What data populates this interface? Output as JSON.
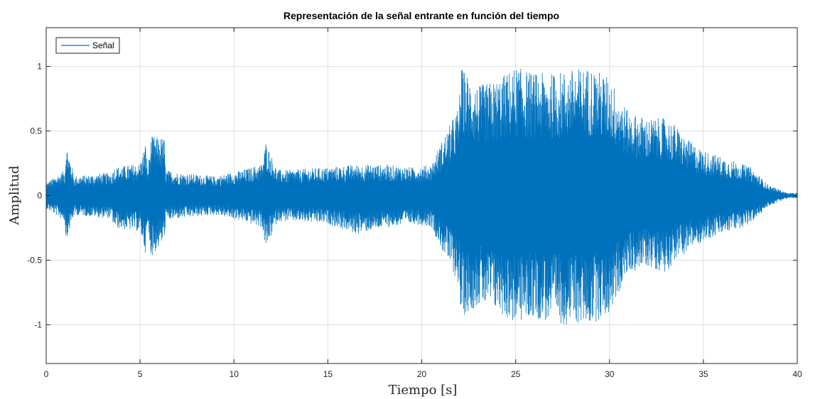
{
  "chart_data": {
    "type": "line",
    "title": "Representación de la señal entrante en función del tiempo",
    "xlabel": "Tiempo [s]",
    "ylabel": "Amplitud",
    "xlim": [
      0,
      40
    ],
    "ylim": [
      -1.3,
      1.3
    ],
    "xticks": [
      0,
      5,
      10,
      15,
      20,
      25,
      30,
      35,
      40
    ],
    "xtick_labels": [
      "0",
      "5",
      "10",
      "15",
      "20",
      "25",
      "30",
      "35",
      "40"
    ],
    "yticks": [
      -1,
      -0.5,
      0,
      0.5,
      1
    ],
    "ytick_labels": [
      "-1",
      "-0.5",
      "0",
      "0.5",
      "1"
    ],
    "grid": true,
    "legend_position": "top-left",
    "series": [
      {
        "name": "Señal",
        "color": "#0072BD",
        "envelope_t": [
          0,
          1,
          1.05,
          1.5,
          3.5,
          3.6,
          5.0,
          5.3,
          5.4,
          5.6,
          6.3,
          6.35,
          7.0,
          9.0,
          10.5,
          11.5,
          11.7,
          12.3,
          13.0,
          15.0,
          16.5,
          18.0,
          19.5,
          20.5,
          21.0,
          21.5,
          22.0,
          22.05,
          23.0,
          24.0,
          25.0,
          26.0,
          27.0,
          28.0,
          29.0,
          30.0,
          31.0,
          32.0,
          33.0,
          33.5,
          34.0,
          35.0,
          36.0,
          37.0,
          37.5,
          38.0,
          38.5,
          39.0,
          39.5,
          40.0
        ],
        "envelope_pos": [
          0.1,
          0.2,
          0.42,
          0.15,
          0.18,
          0.22,
          0.25,
          0.42,
          0.2,
          0.46,
          0.45,
          0.2,
          0.18,
          0.15,
          0.2,
          0.25,
          0.42,
          0.2,
          0.2,
          0.22,
          0.24,
          0.24,
          0.22,
          0.24,
          0.4,
          0.55,
          0.7,
          1.0,
          0.85,
          0.9,
          1.0,
          0.95,
          0.95,
          0.98,
          1.0,
          0.92,
          0.65,
          0.6,
          0.6,
          0.55,
          0.45,
          0.35,
          0.3,
          0.25,
          0.22,
          0.15,
          0.08,
          0.05,
          0.02,
          0.02
        ],
        "envelope_neg": [
          -0.1,
          -0.2,
          -0.35,
          -0.15,
          -0.18,
          -0.25,
          -0.28,
          -0.45,
          -0.25,
          -0.48,
          -0.35,
          -0.2,
          -0.18,
          -0.15,
          -0.2,
          -0.25,
          -0.42,
          -0.2,
          -0.2,
          -0.22,
          -0.3,
          -0.25,
          -0.22,
          -0.24,
          -0.4,
          -0.55,
          -0.7,
          -0.95,
          -0.85,
          -0.9,
          -1.0,
          -0.95,
          -1.0,
          -1.0,
          -1.0,
          -0.92,
          -0.6,
          -0.55,
          -0.6,
          -0.5,
          -0.45,
          -0.35,
          -0.3,
          -0.25,
          -0.22,
          -0.15,
          -0.08,
          -0.05,
          -0.02,
          -0.02
        ]
      }
    ]
  }
}
